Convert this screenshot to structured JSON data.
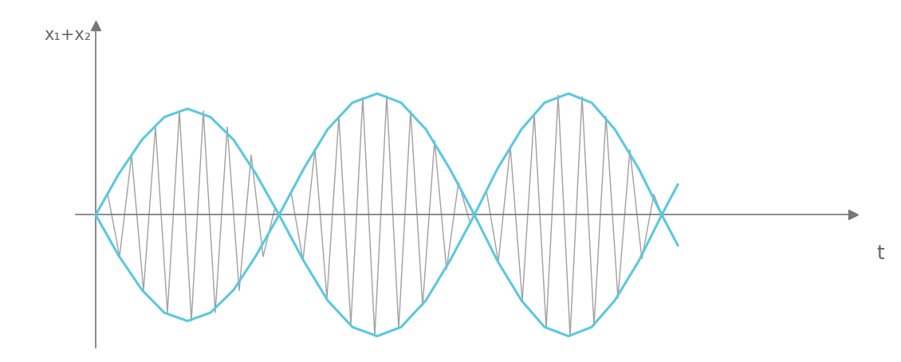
{
  "chart_data": {
    "type": "line",
    "x_label": "t",
    "y_label": "x₁+x₂",
    "xlim": [
      -0.25,
      9.5
    ],
    "ylim": [
      -1.75,
      2.5
    ],
    "xticks": [],
    "yticks": [],
    "tick_labels": false,
    "grid": false,
    "series": [
      {
        "color": "#a0a0a0",
        "x": [
          0,
          0.15,
          0.3,
          0.45,
          0.6,
          0.75,
          0.9,
          1.05,
          1.2,
          1.35,
          1.5,
          1.65,
          1.8,
          1.95,
          2.1,
          2.25,
          2.3,
          2.45,
          2.6,
          2.75,
          2.9,
          3.05,
          3.2,
          3.35,
          3.5,
          3.65,
          3.8,
          3.95,
          4.1,
          4.25,
          4.4,
          4.55,
          4.7,
          4.75,
          4.9,
          5.05,
          5.2,
          5.35,
          5.5,
          5.65,
          5.8,
          5.95,
          6.1,
          6.25,
          6.4,
          6.55,
          6.7,
          6.85,
          7.0,
          7.1
        ],
        "values": [
          0,
          0.28,
          -0.55,
          0.79,
          -1.0,
          1.16,
          -1.29,
          1.37,
          -1.4,
          1.37,
          -1.29,
          1.16,
          -1.0,
          0.79,
          -0.55,
          0.1,
          0,
          0.3,
          -0.6,
          0.87,
          -1.1,
          1.3,
          -1.45,
          1.55,
          -1.6,
          1.57,
          -1.5,
          1.37,
          -1.2,
          0.98,
          -0.72,
          0.43,
          -0.12,
          0,
          0.32,
          -0.62,
          0.9,
          -1.14,
          1.34,
          -1.49,
          1.58,
          -1.6,
          1.56,
          -1.46,
          1.3,
          -1.1,
          0.86,
          -0.58,
          0.27,
          0
        ]
      },
      {
        "color": "#5bc8e0",
        "x": [
          0,
          0.29,
          0.58,
          0.86,
          1.15,
          1.44,
          1.73,
          2.01,
          2.3,
          2.61,
          2.91,
          3.22,
          3.53,
          3.83,
          4.14,
          4.44,
          4.75,
          5.04,
          5.34,
          5.63,
          5.93,
          6.22,
          6.51,
          6.81,
          7.1,
          7.3
        ],
        "values": [
          0,
          0.54,
          0.99,
          1.29,
          1.4,
          1.29,
          0.99,
          0.54,
          0,
          -0.61,
          -1.13,
          -1.48,
          -1.6,
          -1.48,
          -1.13,
          -0.61,
          0,
          0.61,
          1.13,
          1.48,
          1.6,
          1.48,
          1.13,
          0.61,
          0,
          -0.4
        ]
      },
      {
        "color": "#5bc8e0",
        "x": [
          0,
          0.29,
          0.58,
          0.86,
          1.15,
          1.44,
          1.73,
          2.01,
          2.3,
          2.61,
          2.91,
          3.22,
          3.53,
          3.83,
          4.14,
          4.44,
          4.75,
          5.04,
          5.34,
          5.63,
          5.93,
          6.22,
          6.51,
          6.81,
          7.1,
          7.3
        ],
        "values": [
          0,
          -0.54,
          -0.99,
          -1.29,
          -1.4,
          -1.29,
          -0.99,
          -0.54,
          0,
          0.61,
          1.13,
          1.48,
          1.6,
          1.48,
          1.13,
          0.61,
          0,
          -0.61,
          -1.13,
          -1.48,
          -1.6,
          -1.48,
          -1.13,
          -0.61,
          0,
          0.4
        ]
      }
    ]
  }
}
